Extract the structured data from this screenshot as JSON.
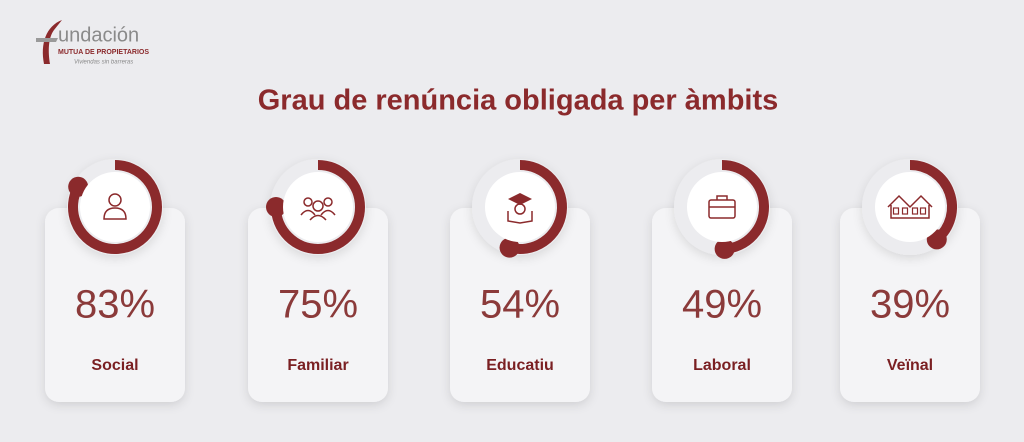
{
  "logo": {
    "name": "undación",
    "subtitle": "MUTUA DE PROPIETARIOS",
    "tagline": "Viviendas sin barreras"
  },
  "chart_data": {
    "type": "gauge",
    "title": "Grau de renúncia obligada per àmbits",
    "categories": [
      "Social",
      "Familiar",
      "Educatiu",
      "Laboral",
      "Veïnal"
    ],
    "values": [
      83,
      75,
      54,
      49,
      39
    ],
    "value_labels": [
      "83%",
      "75%",
      "54%",
      "49%",
      "39%"
    ],
    "ylim": [
      0,
      100
    ],
    "color": "#8b2a2c"
  }
}
